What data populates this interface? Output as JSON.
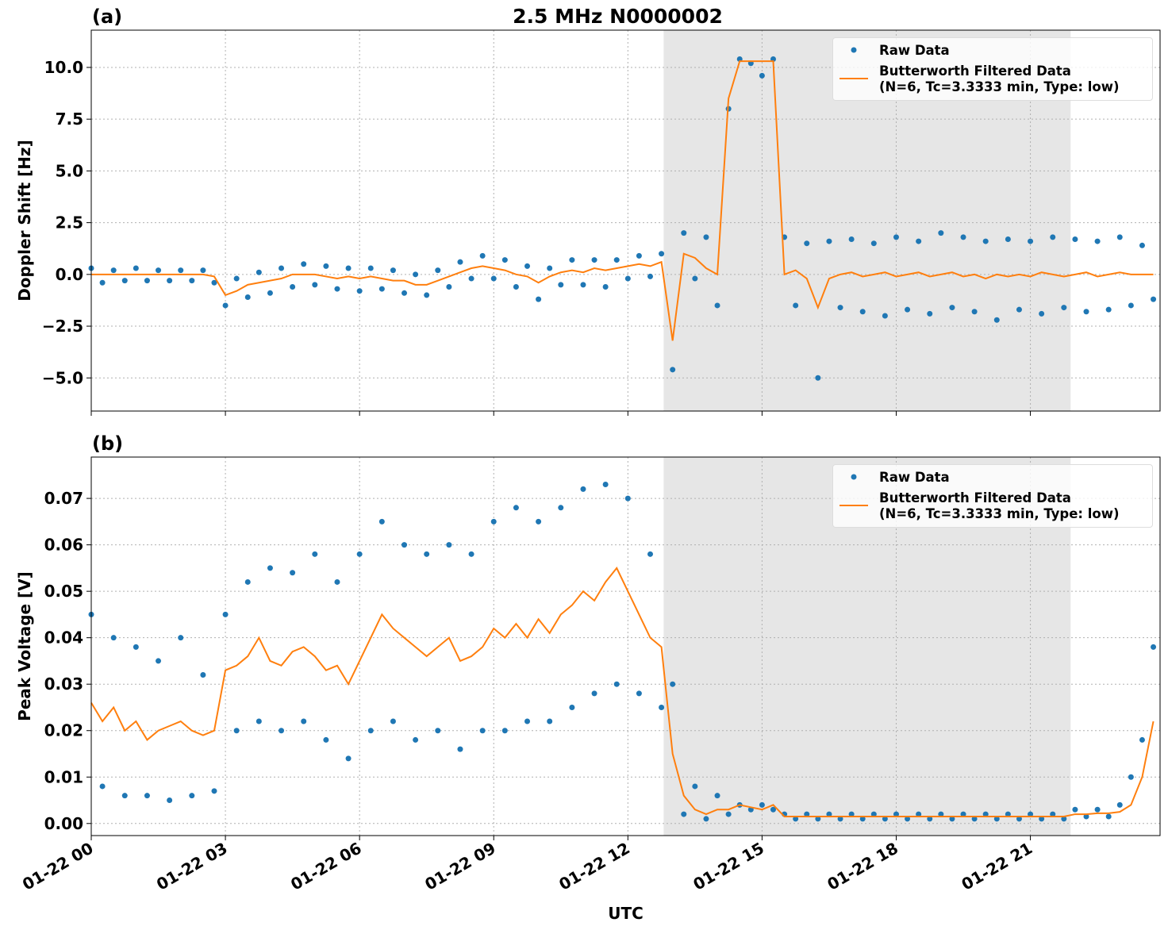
{
  "chart_data": [
    {
      "type": "line",
      "title": "2.5 MHz N0000002",
      "panel_label": "(a)",
      "ylabel": "Doppler Shift [Hz]",
      "xlim": [
        0,
        23.9
      ],
      "xticks": [
        0,
        3,
        6,
        9,
        12,
        15,
        18,
        21
      ],
      "show_xtick_labels": false,
      "ylim": [
        -6.6,
        11.8
      ],
      "yticks": [
        {
          "value": -5,
          "label": "−5.0"
        },
        {
          "value": -2.5,
          "label": "−2.5"
        },
        {
          "value": 0,
          "label": "0.0"
        },
        {
          "value": 2.5,
          "label": "2.5"
        },
        {
          "value": 5,
          "label": "5.0"
        },
        {
          "value": 7.5,
          "label": "7.5"
        },
        {
          "value": 10,
          "label": "10.0"
        }
      ],
      "grid": true,
      "legend": "upper right",
      "shaded_span": [
        12.8,
        21.9
      ],
      "shaded_color": "#e6e6e6",
      "x": [
        0,
        0.25,
        0.5,
        0.75,
        1,
        1.25,
        1.5,
        1.75,
        2,
        2.25,
        2.5,
        2.75,
        3,
        3.25,
        3.5,
        3.75,
        4,
        4.25,
        4.5,
        4.75,
        5,
        5.25,
        5.5,
        5.75,
        6,
        6.25,
        6.5,
        6.75,
        7,
        7.25,
        7.5,
        7.75,
        8,
        8.25,
        8.5,
        8.75,
        9,
        9.25,
        9.5,
        9.75,
        10,
        10.25,
        10.5,
        10.75,
        11,
        11.25,
        11.5,
        11.75,
        12,
        12.25,
        12.5,
        12.75,
        13,
        13.25,
        13.5,
        13.75,
        14,
        14.25,
        14.5,
        14.75,
        15,
        15.25,
        15.5,
        15.75,
        16,
        16.25,
        16.5,
        16.75,
        17,
        17.25,
        17.5,
        17.75,
        18,
        18.25,
        18.5,
        18.75,
        19,
        19.25,
        19.5,
        19.75,
        20,
        20.25,
        20.5,
        20.75,
        21,
        21.25,
        21.5,
        21.75,
        22,
        22.25,
        22.5,
        22.75,
        23,
        23.25,
        23.5,
        23.75
      ],
      "series": [
        {
          "name": "Raw Data",
          "style": "markers",
          "color": "#1f77b4",
          "values": [
            0.3,
            -0.4,
            0.2,
            -0.3,
            0.3,
            -0.3,
            0.2,
            -0.3,
            0.2,
            -0.3,
            0.2,
            -0.4,
            -1.5,
            -0.2,
            -1.1,
            0.1,
            -0.9,
            0.3,
            -0.6,
            0.5,
            -0.5,
            0.4,
            -0.7,
            0.3,
            -0.8,
            0.3,
            -0.7,
            0.2,
            -0.9,
            0.0,
            -1.0,
            0.2,
            -0.6,
            0.6,
            -0.2,
            0.9,
            -0.2,
            0.7,
            -0.6,
            0.4,
            -1.2,
            0.3,
            -0.5,
            0.7,
            -0.5,
            0.7,
            -0.6,
            0.7,
            -0.2,
            0.9,
            -0.1,
            1.0,
            -4.6,
            2.0,
            -0.2,
            1.8,
            -1.5,
            8.0,
            10.4,
            10.2,
            9.6,
            10.4,
            1.8,
            -1.5,
            1.5,
            -5.0,
            1.6,
            -1.6,
            1.7,
            -1.8,
            1.5,
            -2.0,
            1.8,
            -1.7,
            1.6,
            -1.9,
            2.0,
            -1.6,
            1.8,
            -1.8,
            1.6,
            -2.2,
            1.7,
            -1.7,
            1.6,
            -1.9,
            1.8,
            -1.6,
            1.7,
            -1.8,
            1.6,
            -1.7,
            1.8,
            -1.5,
            1.4,
            -1.2
          ]
        },
        {
          "name": "Butterworth Filtered Data\n(N=6, Tc=3.3333 min, Type: low)",
          "style": "line",
          "color": "#ff7f0e",
          "values": [
            0,
            0,
            0,
            0,
            0,
            0,
            0,
            0,
            0,
            0,
            0,
            -0.1,
            -1.0,
            -0.8,
            -0.5,
            -0.4,
            -0.3,
            -0.2,
            0,
            0,
            0,
            -0.1,
            -0.2,
            -0.1,
            -0.2,
            -0.1,
            -0.2,
            -0.3,
            -0.3,
            -0.5,
            -0.5,
            -0.3,
            -0.1,
            0.1,
            0.3,
            0.4,
            0.3,
            0.2,
            0,
            -0.1,
            -0.4,
            -0.1,
            0.1,
            0.2,
            0.1,
            0.3,
            0.2,
            0.3,
            0.4,
            0.5,
            0.4,
            0.6,
            -3.2,
            1.0,
            0.8,
            0.3,
            0,
            8.5,
            10.3,
            10.3,
            10.3,
            10.3,
            0,
            0.2,
            -0.2,
            -1.6,
            -0.2,
            0,
            0.1,
            -0.1,
            0,
            0.1,
            -0.1,
            0,
            0.1,
            -0.1,
            0,
            0.1,
            -0.1,
            0,
            -0.2,
            0,
            -0.1,
            0,
            -0.1,
            0.1,
            0,
            -0.1,
            0,
            0.1,
            -0.1,
            0,
            0.1,
            0,
            0,
            0
          ]
        }
      ]
    },
    {
      "type": "line",
      "panel_label": "(b)",
      "ylabel": "Peak Voltage [V]",
      "xlabel": "UTC",
      "xlim": [
        0,
        23.9
      ],
      "xticks": [
        {
          "value": 0,
          "label": "01-22 00"
        },
        {
          "value": 3,
          "label": "01-22 03"
        },
        {
          "value": 6,
          "label": "01-22 06"
        },
        {
          "value": 9,
          "label": "01-22 09"
        },
        {
          "value": 12,
          "label": "01-22 12"
        },
        {
          "value": 15,
          "label": "01-22 15"
        },
        {
          "value": 18,
          "label": "01-22 18"
        },
        {
          "value": 21,
          "label": "01-22 21"
        }
      ],
      "show_xtick_labels": true,
      "ylim": [
        -0.0026,
        0.0789
      ],
      "yticks": [
        {
          "value": 0,
          "label": "0.00"
        },
        {
          "value": 0.01,
          "label": "0.01"
        },
        {
          "value": 0.02,
          "label": "0.02"
        },
        {
          "value": 0.03,
          "label": "0.03"
        },
        {
          "value": 0.04,
          "label": "0.04"
        },
        {
          "value": 0.05,
          "label": "0.05"
        },
        {
          "value": 0.06,
          "label": "0.06"
        },
        {
          "value": 0.07,
          "label": "0.07"
        }
      ],
      "grid": true,
      "legend": "upper right",
      "shaded_span": [
        12.8,
        21.9
      ],
      "shaded_color": "#e6e6e6",
      "x": [
        0,
        0.25,
        0.5,
        0.75,
        1,
        1.25,
        1.5,
        1.75,
        2,
        2.25,
        2.5,
        2.75,
        3,
        3.25,
        3.5,
        3.75,
        4,
        4.25,
        4.5,
        4.75,
        5,
        5.25,
        5.5,
        5.75,
        6,
        6.25,
        6.5,
        6.75,
        7,
        7.25,
        7.5,
        7.75,
        8,
        8.25,
        8.5,
        8.75,
        9,
        9.25,
        9.5,
        9.75,
        10,
        10.25,
        10.5,
        10.75,
        11,
        11.25,
        11.5,
        11.75,
        12,
        12.25,
        12.5,
        12.75,
        13,
        13.25,
        13.5,
        13.75,
        14,
        14.25,
        14.5,
        14.75,
        15,
        15.25,
        15.5,
        15.75,
        16,
        16.25,
        16.5,
        16.75,
        17,
        17.25,
        17.5,
        17.75,
        18,
        18.25,
        18.5,
        18.75,
        19,
        19.25,
        19.5,
        19.75,
        20,
        20.25,
        20.5,
        20.75,
        21,
        21.25,
        21.5,
        21.75,
        22,
        22.25,
        22.5,
        22.75,
        23,
        23.25,
        23.5,
        23.75
      ],
      "series": [
        {
          "name": "Raw Data",
          "style": "markers",
          "color": "#1f77b4",
          "values": [
            0.045,
            0.008,
            0.04,
            0.006,
            0.038,
            0.006,
            0.035,
            0.005,
            0.04,
            0.006,
            0.032,
            0.007,
            0.045,
            0.02,
            0.052,
            0.022,
            0.055,
            0.02,
            0.054,
            0.022,
            0.058,
            0.018,
            0.052,
            0.014,
            0.058,
            0.02,
            0.065,
            0.022,
            0.06,
            0.018,
            0.058,
            0.02,
            0.06,
            0.016,
            0.058,
            0.02,
            0.065,
            0.02,
            0.068,
            0.022,
            0.065,
            0.022,
            0.068,
            0.025,
            0.072,
            0.028,
            0.073,
            0.03,
            0.07,
            0.028,
            0.058,
            0.025,
            0.03,
            0.002,
            0.008,
            0.001,
            0.006,
            0.002,
            0.004,
            0.003,
            0.004,
            0.003,
            0.002,
            0.001,
            0.002,
            0.001,
            0.002,
            0.001,
            0.002,
            0.001,
            0.002,
            0.001,
            0.002,
            0.001,
            0.002,
            0.001,
            0.002,
            0.001,
            0.002,
            0.001,
            0.002,
            0.001,
            0.002,
            0.001,
            0.002,
            0.001,
            0.002,
            0.001,
            0.003,
            0.0015,
            0.003,
            0.0015,
            0.004,
            0.01,
            0.018,
            0.038
          ]
        },
        {
          "name": "Butterworth Filtered Data\n(N=6, Tc=3.3333 min, Type: low)",
          "style": "line",
          "color": "#ff7f0e",
          "values": [
            0.026,
            0.022,
            0.025,
            0.02,
            0.022,
            0.018,
            0.02,
            0.021,
            0.022,
            0.02,
            0.019,
            0.02,
            0.033,
            0.034,
            0.036,
            0.04,
            0.035,
            0.034,
            0.037,
            0.038,
            0.036,
            0.033,
            0.034,
            0.03,
            0.035,
            0.04,
            0.045,
            0.042,
            0.04,
            0.038,
            0.036,
            0.038,
            0.04,
            0.035,
            0.036,
            0.038,
            0.042,
            0.04,
            0.043,
            0.04,
            0.044,
            0.041,
            0.045,
            0.047,
            0.05,
            0.048,
            0.052,
            0.055,
            0.05,
            0.045,
            0.04,
            0.038,
            0.015,
            0.006,
            0.003,
            0.002,
            0.003,
            0.003,
            0.004,
            0.0035,
            0.003,
            0.004,
            0.0015,
            0.0015,
            0.0015,
            0.0015,
            0.0015,
            0.0015,
            0.0015,
            0.0015,
            0.0015,
            0.0015,
            0.0015,
            0.0015,
            0.0015,
            0.0015,
            0.0015,
            0.0015,
            0.0015,
            0.0015,
            0.0015,
            0.0015,
            0.0015,
            0.0015,
            0.0015,
            0.0015,
            0.0015,
            0.0015,
            0.002,
            0.002,
            0.0022,
            0.0022,
            0.0025,
            0.004,
            0.01,
            0.022
          ]
        }
      ]
    }
  ]
}
